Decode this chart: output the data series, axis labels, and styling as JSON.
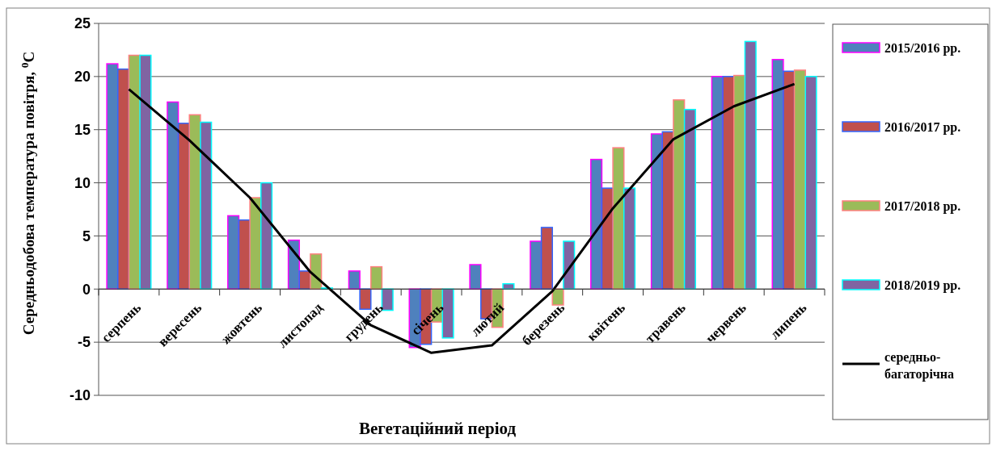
{
  "chart_data": {
    "type": "bar",
    "xlabel": "Вегетаційний період",
    "ylabel": "Середньодобова температура повітря, $^{0}$С",
    "categories": [
      "серпень",
      "вересень",
      "жовтень",
      "листопад",
      "грудень",
      "січень",
      "лютий",
      "березень",
      "квітень",
      "травень",
      "червень",
      "липень"
    ],
    "series": [
      {
        "name": "2015/2016 рр.",
        "color": "#4f81bd",
        "values": [
          21.2,
          17.6,
          6.9,
          4.6,
          1.7,
          -5.5,
          2.3,
          4.5,
          12.2,
          14.6,
          20.0,
          21.6
        ]
      },
      {
        "name": "2016/2017 рр.",
        "color": "#c0504d",
        "values": [
          20.7,
          15.6,
          6.5,
          1.7,
          -1.9,
          -5.2,
          -2.8,
          5.8,
          9.5,
          14.8,
          20.0,
          20.5
        ]
      },
      {
        "name": "2017/2018 рр.",
        "color": "#9bbb59",
        "values": [
          22.0,
          16.4,
          8.6,
          3.3,
          2.1,
          -3.1,
          -3.6,
          -1.5,
          13.3,
          17.8,
          20.1,
          20.6
        ]
      },
      {
        "name": "2018/2019 рр.",
        "color": "#8064a2",
        "values": [
          22.0,
          15.7,
          10.0,
          0.1,
          -2.0,
          -4.6,
          0.5,
          4.5,
          9.5,
          16.9,
          23.3,
          20.0
        ]
      },
      {
        "name": "середньо-багаторічна",
        "type": "line",
        "color": "#000000",
        "values": [
          18.8,
          14.0,
          8.6,
          1.6,
          -3.4,
          -6.0,
          -5.3,
          -0.2,
          7.6,
          14.1,
          17.2,
          19.3
        ]
      }
    ],
    "ylim": [
      -10,
      25
    ],
    "yticks": [
      -10,
      -5,
      0,
      5,
      10,
      15,
      20,
      25
    ],
    "grid": "y",
    "legend": "right",
    "marker": "none",
    "line_style": "solid"
  }
}
